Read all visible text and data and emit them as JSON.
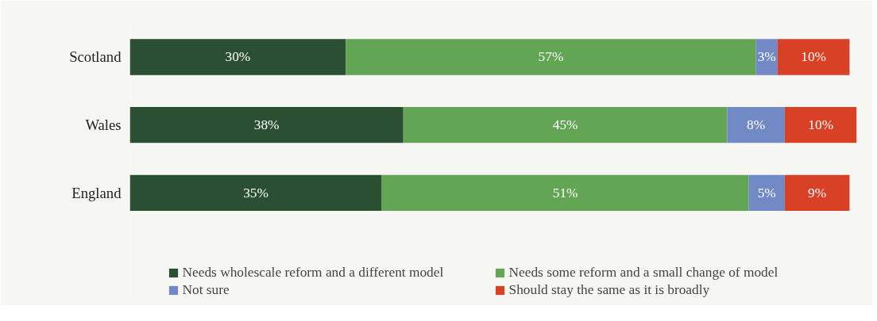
{
  "chart_data": {
    "type": "bar",
    "orientation": "horizontal",
    "stacked": true,
    "legend": "bottom",
    "categories": [
      "Scotland",
      "Wales",
      "England"
    ],
    "series": [
      {
        "name": "Needs wholescale reform and a different model",
        "color": "#2b4f32",
        "values": [
          30,
          38,
          35
        ],
        "value_labels": [
          "30%",
          "38%",
          "35%"
        ]
      },
      {
        "name": "Needs some reform and a small change of model",
        "color": "#62a555",
        "values": [
          57,
          45,
          51
        ],
        "value_labels": [
          "57%",
          "45%",
          "51%"
        ]
      },
      {
        "name": "Not sure",
        "color": "#7189c4",
        "values": [
          3,
          8,
          5
        ],
        "value_labels": [
          "3%",
          "8%",
          "5%"
        ]
      },
      {
        "name": "Should stay the same as it is broadly",
        "color": "#d94126",
        "values": [
          10,
          10,
          9
        ],
        "value_labels": [
          "10%",
          "10%",
          "9%"
        ]
      }
    ]
  }
}
